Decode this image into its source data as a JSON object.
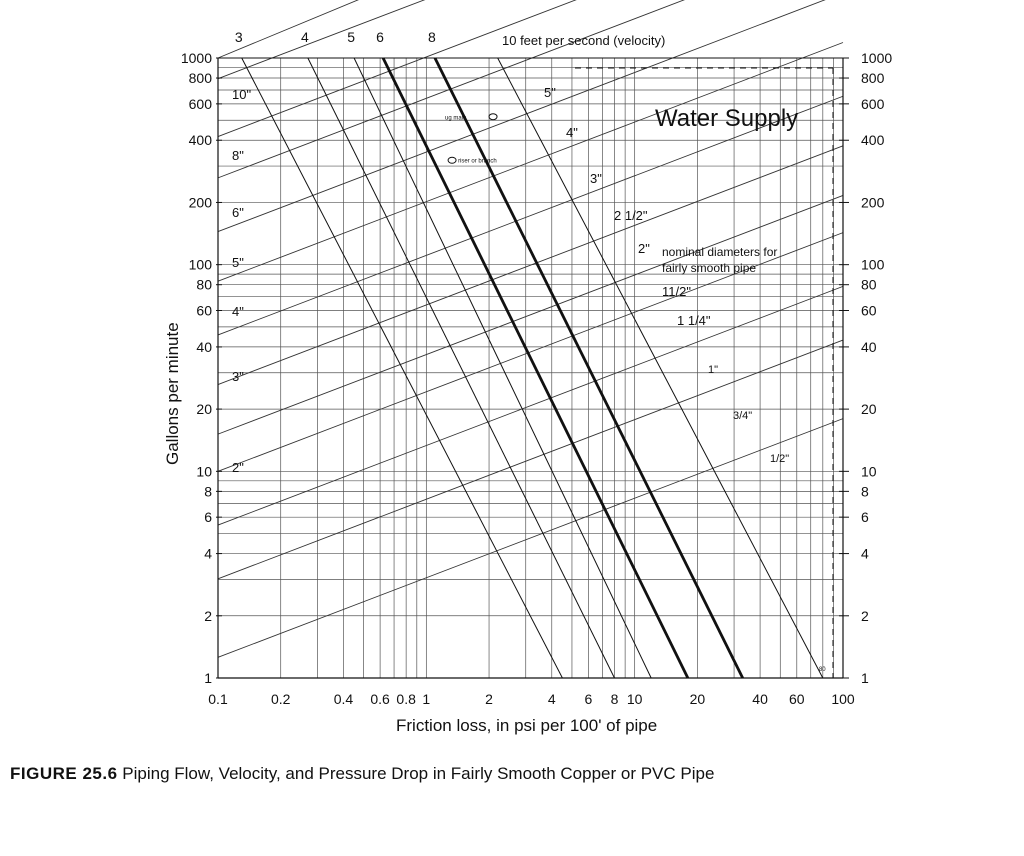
{
  "chart_data": {
    "type": "line",
    "title": "Water Supply",
    "xlabel": "Friction loss, in psi per 100' of pipe",
    "ylabel": "Gallons per minute",
    "x_scale": "log",
    "y_scale": "log",
    "xlim": [
      0.1,
      100
    ],
    "ylim": [
      1,
      1000
    ],
    "grid": true,
    "x_ticks": [
      {
        "v": 0.1,
        "label": "0.1"
      },
      {
        "v": 0.2,
        "label": "0.2"
      },
      {
        "v": 0.4,
        "label": "0.4"
      },
      {
        "v": 0.6,
        "label": "0.6"
      },
      {
        "v": 0.8,
        "label": "0.8"
      },
      {
        "v": 1,
        "label": "1"
      },
      {
        "v": 2,
        "label": "2"
      },
      {
        "v": 4,
        "label": "4"
      },
      {
        "v": 6,
        "label": "6"
      },
      {
        "v": 8,
        "label": "8"
      },
      {
        "v": 10,
        "label": "10"
      },
      {
        "v": 20,
        "label": "20"
      },
      {
        "v": 40,
        "label": "40"
      },
      {
        "v": 60,
        "label": "60"
      },
      {
        "v": 100,
        "label": "100"
      }
    ],
    "y_ticks": [
      {
        "v": 1,
        "label": "1"
      },
      {
        "v": 2,
        "label": "2"
      },
      {
        "v": 4,
        "label": "4"
      },
      {
        "v": 6,
        "label": "6"
      },
      {
        "v": 8,
        "label": "8"
      },
      {
        "v": 10,
        "label": "10"
      },
      {
        "v": 20,
        "label": "20"
      },
      {
        "v": 40,
        "label": "40"
      },
      {
        "v": 60,
        "label": "60"
      },
      {
        "v": 80,
        "label": "80"
      },
      {
        "v": 100,
        "label": "100"
      },
      {
        "v": 200,
        "label": "200"
      },
      {
        "v": 400,
        "label": "400"
      },
      {
        "v": 600,
        "label": "600"
      },
      {
        "v": 800,
        "label": "800"
      },
      {
        "v": 1000,
        "label": "1000"
      }
    ],
    "diameter_note": "nominal diameters for fairly smooth pipe",
    "diameters": [
      {
        "label": "1/2\"",
        "at": [
          0.11,
          1.25
        ],
        "end": [
          40,
          10
        ]
      },
      {
        "label": "3/4\"",
        "at": [
          0.11,
          3
        ],
        "end": [
          40,
          30
        ]
      },
      {
        "label": "1\"",
        "at": [
          0.11,
          5.5
        ],
        "end": [
          40,
          55
        ]
      },
      {
        "label": "1 1/4\"",
        "at": [
          0.11,
          10
        ],
        "end": [
          40,
          100
        ]
      },
      {
        "label": "11/2\"",
        "at": [
          0.11,
          15
        ],
        "end": [
          40,
          150
        ]
      },
      {
        "label": "2\"",
        "at": [
          0.11,
          10
        ],
        "end": [
          40,
          100
        ]
      },
      {
        "label": "2 1/2\"",
        "at": [
          0.11,
          15
        ],
        "end": [
          40,
          150
        ]
      },
      {
        "label": "3\"",
        "at": [
          0.11,
          30
        ],
        "end": [
          40,
          300
        ]
      },
      {
        "label": "4\"",
        "at": [
          0.11,
          55
        ],
        "end": [
          40,
          550
        ]
      },
      {
        "label": "5\"",
        "at": [
          0.11,
          100
        ],
        "end": [
          40,
          1000
        ]
      },
      {
        "label": "6\"",
        "at": [
          0.11,
          160
        ],
        "end": [
          40,
          1000
        ]
      },
      {
        "label": "8\"",
        "at": [
          0.11,
          320
        ],
        "end": [
          40,
          1000
        ]
      },
      {
        "label": "10\"",
        "at": [
          0.11,
          600
        ],
        "end": [
          40,
          1000
        ]
      }
    ],
    "velocity_label": "10 feet per second (velocity)",
    "velocities": [
      {
        "label": "3",
        "bold": false,
        "top": [
          0.13,
          1000
        ],
        "bottom": [
          4.5,
          1
        ]
      },
      {
        "label": "4",
        "bold": false,
        "top": [
          0.27,
          1000
        ],
        "bottom": [
          8,
          1
        ]
      },
      {
        "label": "5",
        "bold": false,
        "top": [
          0.45,
          1000
        ],
        "bottom": [
          12,
          1
        ]
      },
      {
        "label": "6",
        "bold": true,
        "top": [
          0.62,
          1000
        ],
        "bottom": [
          18,
          1
        ]
      },
      {
        "label": "8",
        "bold": true,
        "top": [
          1.1,
          1000
        ],
        "bottom": [
          33,
          1
        ]
      },
      {
        "label": "10 feet per second (velocity)",
        "bold": false,
        "top": [
          2.2,
          1000
        ],
        "bottom": [
          80,
          1
        ]
      }
    ],
    "annotations": [
      {
        "label": "ug main",
        "at": [
          2.0,
          520
        ]
      },
      {
        "label": "riser or branch",
        "at": [
          1.3,
          320
        ]
      },
      {
        "label": "80",
        "at": [
          75,
          1.08
        ]
      }
    ]
  },
  "caption": {
    "figure_number": "FIGURE 25.6",
    "text": "Piping Flow, Velocity, and Pressure Drop in Fairly Smooth Copper or PVC Pipe"
  }
}
